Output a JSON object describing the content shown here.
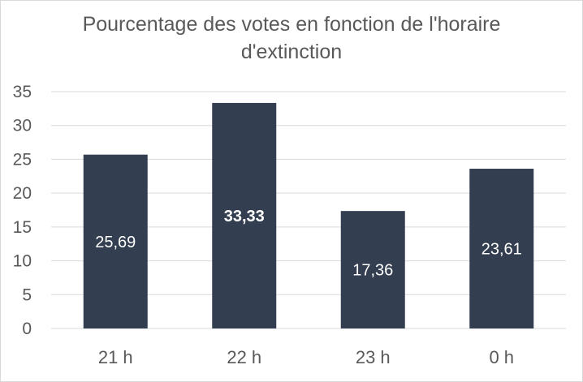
{
  "chart_data": {
    "type": "bar",
    "title_lines": [
      "Pourcentage des votes en fonction de l'horaire",
      "d'extinction"
    ],
    "categories": [
      "21 h",
      "22 h",
      "23 h",
      "0 h"
    ],
    "values": [
      25.69,
      33.33,
      17.36,
      23.61
    ],
    "data_labels": [
      "25,69",
      "33,33",
      "17,36",
      "23,61"
    ],
    "highlighted_label_index": 1,
    "yticks": [
      "0",
      "5",
      "10",
      "15",
      "20",
      "25",
      "30",
      "35"
    ],
    "ylim": [
      0,
      35
    ],
    "grid": true,
    "legend": "none",
    "bar_color": "#333f50",
    "label_color": "#ffffff",
    "axis_text_color": "#595959",
    "grid_color": "#d9d9d9"
  }
}
